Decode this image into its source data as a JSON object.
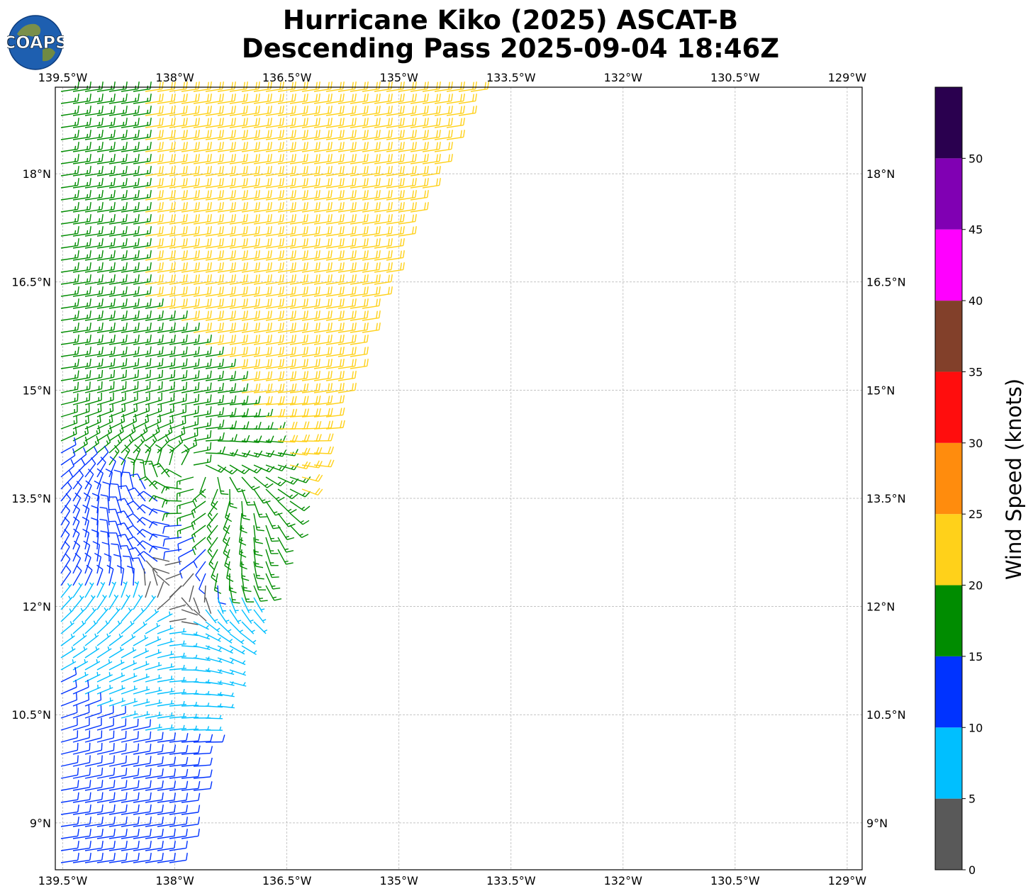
{
  "header": {
    "title_line1": "Hurricane Kiko (2025) ASCAT-B",
    "title_line2": "Descending Pass 2025-09-04 18:46Z",
    "logo_text": "COAPS"
  },
  "map": {
    "lon_range": [
      -139.6,
      -128.8
    ],
    "lat_range": [
      8.35,
      19.2
    ],
    "lon_ticks": [
      {
        "value": -139.5,
        "label": "139.5°W"
      },
      {
        "value": -138,
        "label": "138°W"
      },
      {
        "value": -136.5,
        "label": "136.5°W"
      },
      {
        "value": -135,
        "label": "135°W"
      },
      {
        "value": -133.5,
        "label": "133.5°W"
      },
      {
        "value": -132,
        "label": "132°W"
      },
      {
        "value": -130.5,
        "label": "130.5°W"
      },
      {
        "value": -129,
        "label": "129°W"
      }
    ],
    "lat_ticks": [
      {
        "value": 18,
        "label": "18°N"
      },
      {
        "value": 16.5,
        "label": "16.5°N"
      },
      {
        "value": 15,
        "label": "15°N"
      },
      {
        "value": 13.5,
        "label": "13.5°N"
      },
      {
        "value": 12,
        "label": "12°N"
      },
      {
        "value": 10.5,
        "label": "10.5°N"
      },
      {
        "value": 9,
        "label": "9°N"
      }
    ],
    "gridlines": true,
    "swath": {
      "description_free": true,
      "polygon": [
        [
          -139.6,
          19.2
        ],
        [
          -134.0,
          19.2
        ],
        [
          -135.05,
          16.9
        ],
        [
          -136.65,
          12.55
        ],
        [
          -137.5,
          10.3
        ],
        [
          -138.0,
          8.35
        ],
        [
          -139.6,
          8.35
        ]
      ]
    },
    "storm_center": {
      "lon": -138.0,
      "lat": 12.2
    }
  },
  "colorbar": {
    "label": "Wind Speed (knots)",
    "bins": [
      {
        "min": 0,
        "max": 5,
        "color": "#595959"
      },
      {
        "min": 5,
        "max": 10,
        "color": "#00bfff"
      },
      {
        "min": 10,
        "max": 15,
        "color": "#0033ff"
      },
      {
        "min": 15,
        "max": 20,
        "color": "#008c00"
      },
      {
        "min": 20,
        "max": 25,
        "color": "#ffd11a"
      },
      {
        "min": 25,
        "max": 30,
        "color": "#ff8c0d"
      },
      {
        "min": 30,
        "max": 35,
        "color": "#ff0d0d"
      },
      {
        "min": 35,
        "max": 40,
        "color": "#82402a"
      },
      {
        "min": 40,
        "max": 45,
        "color": "#ff00ff"
      },
      {
        "min": 45,
        "max": 50,
        "color": "#8000b3"
      },
      {
        "min": 50,
        "max": 55,
        "color": "#2a004f"
      }
    ],
    "tick_labels": [
      "0",
      "5",
      "10",
      "15",
      "20",
      "25",
      "30",
      "35",
      "40",
      "45",
      "50"
    ]
  }
}
